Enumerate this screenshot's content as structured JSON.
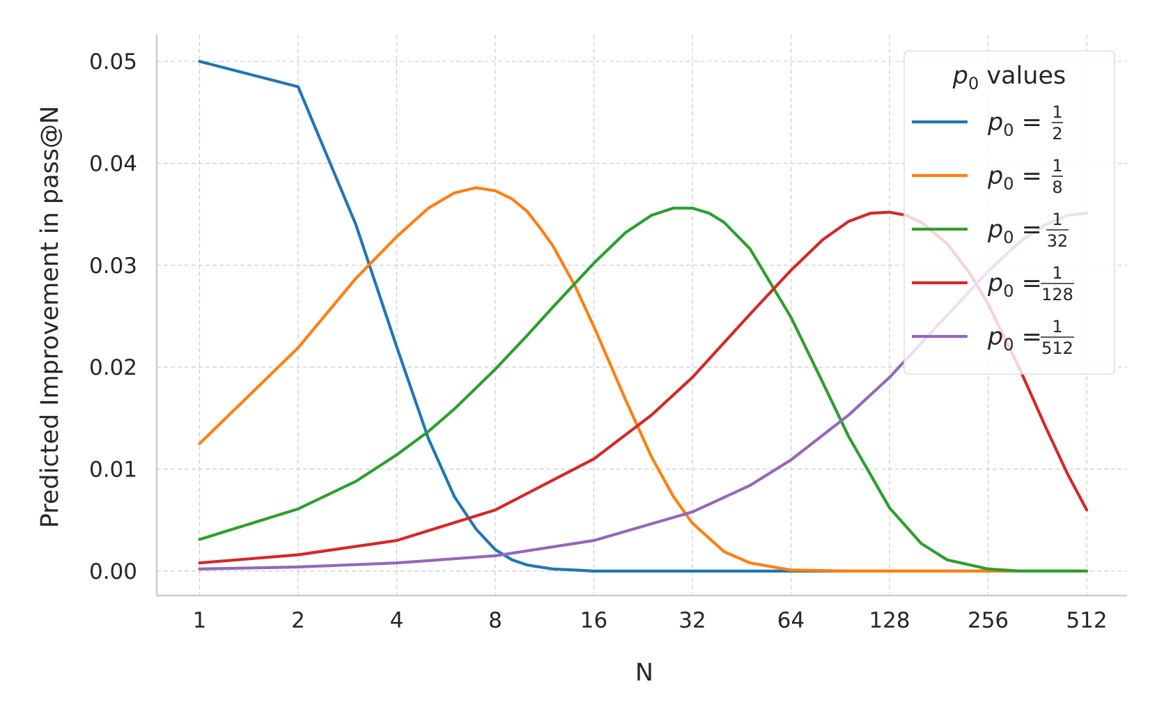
{
  "chart_data": {
    "type": "line",
    "xlabel": "N",
    "ylabel": "Predicted Improvement in pass@N",
    "x_scale": "log2",
    "x_ticks": [
      1,
      2,
      4,
      8,
      16,
      32,
      64,
      128,
      256,
      512
    ],
    "x_tick_labels": [
      "1",
      "2",
      "4",
      "8",
      "16",
      "32",
      "64",
      "128",
      "256",
      "512"
    ],
    "xlim": [
      0.74,
      680
    ],
    "y_ticks": [
      0.0,
      0.01,
      0.02,
      0.03,
      0.04,
      0.05
    ],
    "y_tick_labels": [
      "0.00",
      "0.01",
      "0.02",
      "0.03",
      "0.04",
      "0.05"
    ],
    "ylim": [
      -0.0024,
      0.0526
    ],
    "grid": true,
    "legend": {
      "title_symbol": "p",
      "title_sub": "0",
      "title_text": " values",
      "placement": "top-right"
    },
    "series": [
      {
        "name": "p0 = 1/2",
        "label_numerator": "1",
        "label_denominator": "2",
        "color": "#1f77b4",
        "x": [
          1,
          2,
          3,
          4,
          5,
          6,
          7,
          8,
          9,
          10,
          12,
          14,
          16,
          20,
          24,
          32,
          64,
          128,
          256,
          512
        ],
        "y": [
          0.05,
          0.0475,
          0.034,
          0.022,
          0.013,
          0.0073,
          0.0041,
          0.0021,
          0.0011,
          0.0006,
          0.0002,
          0.0001,
          0.0,
          0.0,
          0.0,
          0.0,
          0.0,
          0.0,
          0.0,
          0.0
        ]
      },
      {
        "name": "p0 = 1/8",
        "label_numerator": "1",
        "label_denominator": "8",
        "color": "#ff7f0e",
        "x": [
          1,
          2,
          3,
          4,
          5,
          6,
          7,
          8,
          9,
          10,
          11,
          12,
          14,
          16,
          20,
          24,
          28,
          32,
          40,
          48,
          64,
          96,
          128,
          256,
          512
        ],
        "y": [
          0.0125,
          0.0219,
          0.0287,
          0.0328,
          0.0356,
          0.0371,
          0.0376,
          0.0373,
          0.0365,
          0.0353,
          0.0336,
          0.0319,
          0.028,
          0.024,
          0.0168,
          0.0112,
          0.0073,
          0.0047,
          0.0019,
          0.0008,
          0.0001,
          0.0,
          0.0,
          0.0,
          0.0
        ]
      },
      {
        "name": "p0 = 1/32",
        "label_numerator": "1",
        "label_denominator": "32",
        "color": "#2ca02c",
        "x": [
          1,
          2,
          3,
          4,
          5,
          6,
          8,
          10,
          12,
          16,
          20,
          24,
          28,
          32,
          36,
          40,
          48,
          64,
          80,
          96,
          128,
          160,
          192,
          256,
          320,
          384,
          512
        ],
        "y": [
          0.0031,
          0.0061,
          0.0088,
          0.0114,
          0.0137,
          0.0159,
          0.0198,
          0.0231,
          0.0259,
          0.0302,
          0.0332,
          0.0349,
          0.0356,
          0.0356,
          0.0351,
          0.0342,
          0.0316,
          0.0249,
          0.0185,
          0.0132,
          0.0062,
          0.0027,
          0.0011,
          0.0002,
          0.0,
          0.0,
          0.0
        ]
      },
      {
        "name": "p0 = 1/128",
        "label_numerator": "1",
        "label_denominator": "128",
        "color": "#d62728",
        "x": [
          1,
          2,
          4,
          8,
          16,
          24,
          32,
          48,
          64,
          80,
          96,
          112,
          128,
          144,
          160,
          192,
          224,
          256,
          320,
          384,
          448,
          512
        ],
        "y": [
          0.0008,
          0.0016,
          0.003,
          0.006,
          0.011,
          0.0153,
          0.019,
          0.0252,
          0.0295,
          0.0325,
          0.0343,
          0.0351,
          0.0352,
          0.0349,
          0.0342,
          0.0321,
          0.0293,
          0.0262,
          0.0198,
          0.0141,
          0.0095,
          0.006
        ]
      },
      {
        "name": "p0 = 1/512",
        "label_numerator": "1",
        "label_denominator": "512",
        "color": "#9467bd",
        "x": [
          1,
          2,
          4,
          8,
          16,
          32,
          48,
          64,
          96,
          128,
          192,
          256,
          320,
          384,
          448,
          512
        ],
        "y": [
          0.0002,
          0.0004,
          0.0008,
          0.0015,
          0.003,
          0.0058,
          0.0084,
          0.0109,
          0.0153,
          0.019,
          0.0251,
          0.0294,
          0.0323,
          0.034,
          0.0349,
          0.0351
        ]
      }
    ]
  }
}
